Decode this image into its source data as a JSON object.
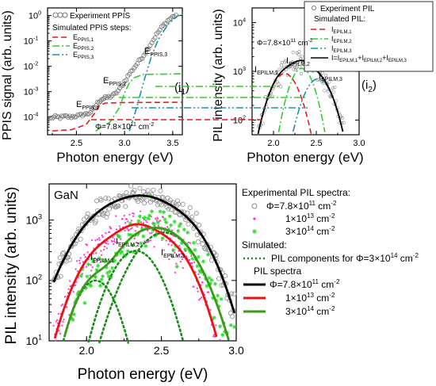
{
  "chart_data": [
    {
      "id": "i1",
      "type": "scatter",
      "panel_label": "(i",
      "panel_label_sub": "1",
      "panel_label_close": ")",
      "xlabel": "Photon energy (eV)",
      "ylabel": "PPIS signal (arb. units)",
      "xlim": [
        2.2,
        3.6
      ],
      "ylim_log10": [
        -4.7,
        0.3
      ],
      "x_ticks": [
        "2.5",
        "3.0",
        "3.5"
      ],
      "y_ticks": [
        {
          "base": "10",
          "exp": "0",
          "log": 0
        },
        {
          "base": "10",
          "exp": "-1",
          "log": -1
        },
        {
          "base": "10",
          "exp": "-2",
          "log": -2
        },
        {
          "base": "10",
          "exp": "-3",
          "log": -3
        },
        {
          "base": "10",
          "exp": "-4",
          "log": -4
        }
      ],
      "legend": {
        "experiment": "Experiment PPIS",
        "simulated_title": "Simulated PPIS steps:",
        "steps": [
          {
            "label": "E",
            "sub": "PPIS,1",
            "color": "#e41a1c",
            "dash": "7,4"
          },
          {
            "label": "E",
            "sub": "PPIS,2",
            "color": "#33cc33",
            "dash": "9,3,2,3"
          },
          {
            "label": "E",
            "sub": "PPIS,3",
            "color": "#1f8fa8",
            "dash": "9,3,2,3,2,3"
          }
        ]
      },
      "annotations": [
        {
          "text": "E",
          "sub": "PPIS,1"
        },
        {
          "text": "E",
          "sub": "PPIS,2"
        },
        {
          "text": "E",
          "sub": "PPIS,3"
        }
      ],
      "flux_label": {
        "text": "Φ=7.8×10",
        "exp": "11",
        "unit": " cm",
        "unit_exp": "-2"
      },
      "series": [
        {
          "name": "Experiment PPIS",
          "kind": "markers",
          "color": "#777777",
          "points": [
            [
              2.23,
              -4.05
            ],
            [
              2.28,
              -4.0
            ],
            [
              2.33,
              -4.02
            ],
            [
              2.38,
              -3.98
            ],
            [
              2.43,
              -4.0
            ],
            [
              2.48,
              -3.97
            ],
            [
              2.53,
              -3.95
            ],
            [
              2.58,
              -3.9
            ],
            [
              2.63,
              -3.85
            ],
            [
              2.68,
              -3.7
            ],
            [
              2.72,
              -3.45
            ],
            [
              2.76,
              -3.3
            ],
            [
              2.8,
              -3.25
            ],
            [
              2.85,
              -3.2
            ],
            [
              2.9,
              -3.1
            ],
            [
              2.95,
              -2.9
            ],
            [
              3.0,
              -2.6
            ],
            [
              3.05,
              -2.3
            ],
            [
              3.1,
              -2.05
            ],
            [
              3.15,
              -1.8
            ],
            [
              3.2,
              -1.55
            ],
            [
              3.25,
              -1.25
            ],
            [
              3.3,
              -0.95
            ],
            [
              3.35,
              -0.65
            ],
            [
              3.4,
              -0.4
            ],
            [
              3.45,
              -0.2
            ],
            [
              3.5,
              -0.05
            ],
            [
              3.55,
              0.05
            ]
          ]
        },
        {
          "name": "E_PPIS,1",
          "kind": "line",
          "color": "#e41a1c",
          "dash": "7,4",
          "points": [
            [
              2.25,
              -4.55
            ],
            [
              2.45,
              -4.5
            ],
            [
              2.6,
              -4.3
            ],
            [
              2.68,
              -3.9
            ],
            [
              2.74,
              -3.55
            ],
            [
              2.8,
              -3.45
            ],
            [
              3.0,
              -3.43
            ],
            [
              3.6,
              -3.42
            ]
          ]
        },
        {
          "name": "E_PPIS,2",
          "kind": "line",
          "color": "#33cc33",
          "dash": "9,3,2,3",
          "points": [
            [
              2.7,
              -4.55
            ],
            [
              2.85,
              -4.2
            ],
            [
              2.95,
              -3.6
            ],
            [
              3.0,
              -3.05
            ],
            [
              3.05,
              -2.65
            ],
            [
              3.1,
              -2.45
            ],
            [
              3.2,
              -2.32
            ],
            [
              3.6,
              -2.3
            ]
          ]
        },
        {
          "name": "E_PPIS,3",
          "kind": "line",
          "color": "#1f8fa8",
          "dash": "9,3,2,3,2,3",
          "points": [
            [
              3.05,
              -4.55
            ],
            [
              3.12,
              -3.7
            ],
            [
              3.2,
              -2.6
            ],
            [
              3.28,
              -1.6
            ],
            [
              3.35,
              -0.95
            ],
            [
              3.45,
              -0.35
            ],
            [
              3.55,
              -0.02
            ],
            [
              3.6,
              0.05
            ]
          ]
        }
      ]
    },
    {
      "id": "i2",
      "type": "scatter",
      "panel_label": "(i",
      "panel_label_sub": "2",
      "panel_label_close": ")",
      "xlabel": "Photon energy (eV)",
      "ylabel": "PIL intensity (arb. units)",
      "xlim": [
        1.75,
        3.0
      ],
      "ylim_log10": [
        1.7,
        4.3
      ],
      "x_ticks": [
        "2.0",
        "2.5",
        "3.0"
      ],
      "y_ticks": [
        {
          "base": "10",
          "exp": "4",
          "log": 4
        },
        {
          "base": "10",
          "exp": "3",
          "log": 3
        },
        {
          "base": "10",
          "exp": "2",
          "log": 2
        }
      ],
      "legend": {
        "experiment": "Experiment PIL",
        "simulated_title": "Simulated PIL:",
        "components": [
          {
            "label": "I",
            "sub": "EPILM,1",
            "color": "#e41a1c",
            "dash": "7,4"
          },
          {
            "label": "I",
            "sub": "EPILM,2",
            "color": "#33cc33",
            "dash": "9,3,2,3"
          },
          {
            "label": "I",
            "sub": "EPILM,3",
            "color": "#1f8fa8",
            "dash": "9,3,2,3,2,3"
          },
          {
            "label": "I=I",
            "sub": "EPILM,1",
            "plus": "+I",
            "sub2": "EPILM,2",
            "plus2": "+I",
            "sub3": "EPILM,3",
            "color": "#000000",
            "dash": ""
          }
        ]
      },
      "annotations": [
        {
          "text": "I",
          "sub": "EPILM,1"
        },
        {
          "text": "I",
          "sub": "EPILM,2"
        },
        {
          "text": "I",
          "sub": "EPILM,3"
        }
      ],
      "flux_label": {
        "text": "Φ=7.8×10",
        "exp": "11",
        "unit": " cm",
        "unit_exp": "-2"
      }
    },
    {
      "id": "main",
      "type": "scatter",
      "sample_label": "GaN",
      "xlabel": "Photon energy (eV)",
      "ylabel": "PIL intensity (arb. units)",
      "xlim": [
        1.75,
        3.0
      ],
      "ylim_log10": [
        1.0,
        3.6
      ],
      "x_ticks": [
        "2.0",
        "2.5",
        "3.0"
      ],
      "y_ticks": [
        {
          "base": "10",
          "exp": "3",
          "log": 3
        },
        {
          "base": "10",
          "exp": "2",
          "log": 2
        },
        {
          "base": "10",
          "exp": "1",
          "log": 1
        }
      ],
      "annotations": [
        {
          "text": "I",
          "sub": "EPILM,1"
        },
        {
          "text": "I",
          "sub": "EPILM,2"
        },
        {
          "text": "I",
          "sub": "EPILM,3"
        }
      ],
      "legend": {
        "experimental_title": "Experimental PIL spectra:",
        "experimental": [
          {
            "text": "Φ=7.8×10",
            "exp": "11",
            "unit": " cm",
            "unit_exp": "-2",
            "marker": "circle",
            "color": "#888888"
          },
          {
            "text": "1×10",
            "exp": "13",
            "unit": " cm",
            "unit_exp": "-2",
            "marker": "dot",
            "color": "#ff33cc"
          },
          {
            "text": "3×10",
            "exp": "14",
            "unit": " cm",
            "unit_exp": "-2",
            "marker": "star",
            "color": "#33dd33"
          }
        ],
        "simulated_title": "Simulated:",
        "components_label": {
          "text": "PIL components for Φ=3×10",
          "exp": "14",
          "unit": " cm",
          "unit_exp": "-2",
          "color": "#1a8a1a"
        },
        "spectra_title": "PIL spectra",
        "spectra": [
          {
            "text": "Φ=7.8×10",
            "exp": "11",
            "unit": " cm",
            "unit_exp": "-2",
            "color": "#000000"
          },
          {
            "text": "1×10",
            "exp": "13",
            "unit": " cm",
            "unit_exp": "-2",
            "color": "#ee1111"
          },
          {
            "text": "3×10",
            "exp": "14",
            "unit": " cm",
            "unit_exp": "-2",
            "color": "#3a9a1a"
          }
        ]
      }
    }
  ],
  "colors": {
    "red": "#e41a1c",
    "green": "#33cc33",
    "teal": "#1f8fa8",
    "gray": "#777777",
    "magenta": "#ff33cc",
    "darkgreen": "#3a9a1a",
    "dotgreen": "#1a8a1a"
  }
}
